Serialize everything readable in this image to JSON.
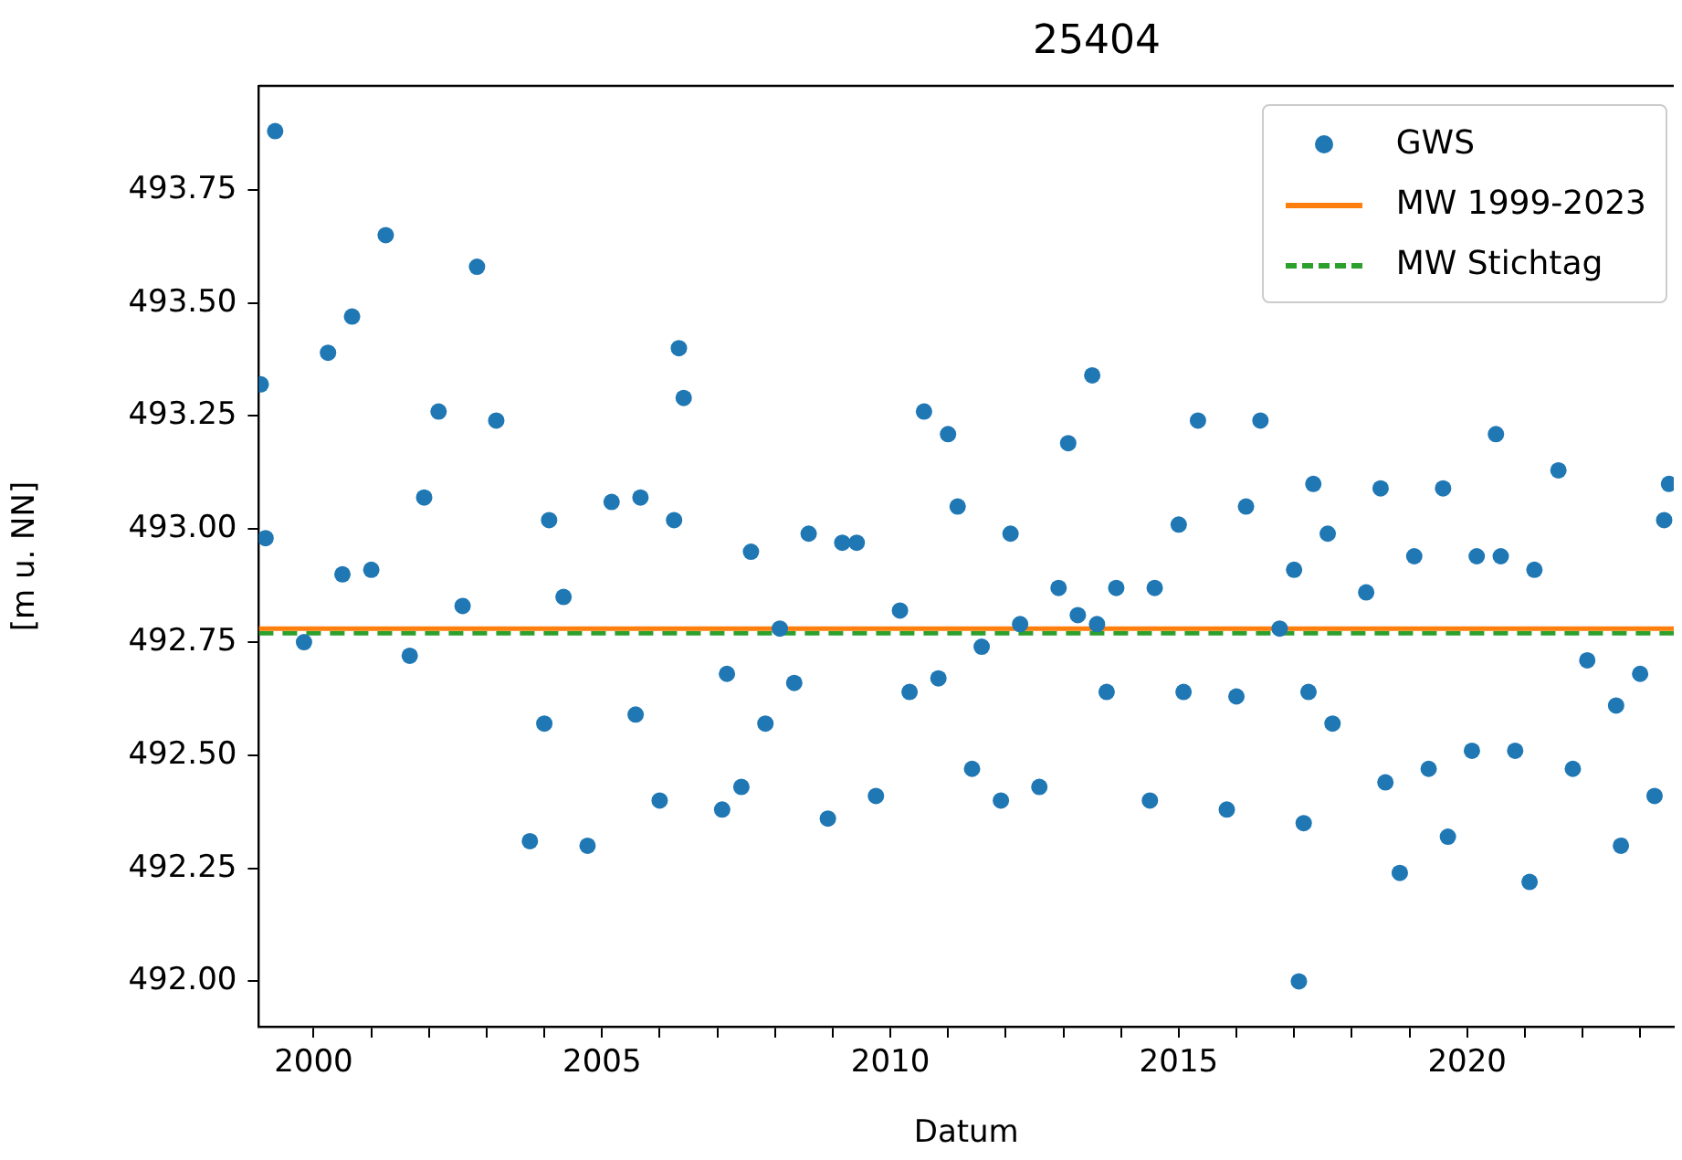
{
  "chart_data": {
    "type": "scatter",
    "title": "25404",
    "xlabel": "Datum",
    "ylabel": "[m u. NN]",
    "x": [
      "1999-02",
      "1999-03",
      "1999-05",
      "1999-11",
      "2000-04",
      "2000-07",
      "2000-09",
      "2001-01",
      "2001-04",
      "2001-09",
      "2001-12",
      "2002-03",
      "2002-08",
      "2002-11",
      "2003-03",
      "2003-10",
      "2004-01",
      "2004-02",
      "2004-05",
      "2004-10",
      "2005-03",
      "2005-08",
      "2005-09",
      "2006-01",
      "2006-04",
      "2006-05",
      "2006-06",
      "2007-02",
      "2007-03",
      "2007-06",
      "2007-08",
      "2007-11",
      "2008-02",
      "2008-05",
      "2008-08",
      "2008-12",
      "2009-03",
      "2009-06",
      "2009-10",
      "2010-03",
      "2010-05",
      "2010-08",
      "2010-11",
      "2011-01",
      "2011-03",
      "2011-06",
      "2011-08",
      "2011-12",
      "2012-02",
      "2012-04",
      "2012-08",
      "2012-12",
      "2013-02",
      "2013-04",
      "2013-07",
      "2013-08",
      "2013-10",
      "2013-12",
      "2014-07",
      "2014-08",
      "2015-01",
      "2015-02",
      "2015-05",
      "2015-11",
      "2016-01",
      "2016-03",
      "2016-06",
      "2016-10",
      "2017-01",
      "2017-02",
      "2017-03",
      "2017-04",
      "2017-05",
      "2017-08",
      "2017-09",
      "2018-04",
      "2018-07",
      "2018-08",
      "2018-11",
      "2019-02",
      "2019-05",
      "2019-08",
      "2019-09",
      "2020-02",
      "2020-03",
      "2020-07",
      "2020-08",
      "2020-11",
      "2021-02",
      "2021-03",
      "2021-08",
      "2021-11",
      "2022-02",
      "2022-08",
      "2022-09",
      "2023-01",
      "2023-04",
      "2023-06",
      "2023-07"
    ],
    "series": [
      {
        "name": "GWS",
        "color": "#1f77b4",
        "values": [
          493.32,
          492.98,
          493.88,
          492.75,
          493.39,
          492.9,
          493.47,
          492.91,
          493.65,
          492.72,
          493.07,
          493.26,
          492.83,
          493.58,
          493.24,
          492.31,
          492.57,
          493.02,
          492.85,
          492.3,
          493.06,
          492.59,
          493.07,
          492.4,
          493.02,
          493.4,
          493.29,
          492.38,
          492.68,
          492.43,
          492.95,
          492.57,
          492.78,
          492.66,
          492.99,
          492.36,
          492.97,
          492.97,
          492.41,
          492.82,
          492.64,
          493.26,
          492.67,
          493.21,
          493.05,
          492.47,
          492.74,
          492.4,
          492.99,
          492.79,
          492.43,
          492.87,
          493.19,
          492.81,
          493.34,
          492.79,
          492.64,
          492.87,
          492.4,
          492.87,
          493.01,
          492.64,
          493.24,
          492.38,
          492.63,
          493.05,
          493.24,
          492.78,
          492.91,
          492.0,
          492.35,
          492.64,
          493.1,
          492.99,
          492.57,
          492.86,
          493.09,
          492.44,
          492.24,
          492.94,
          492.47,
          493.09,
          492.32,
          492.51,
          492.94,
          493.21,
          492.94,
          492.51,
          492.22,
          492.91,
          493.13,
          492.47,
          492.71,
          492.61,
          492.3,
          492.68,
          492.41,
          493.02,
          493.1
        ]
      }
    ],
    "marker": "circle",
    "ref_lines": [
      {
        "axis": "y",
        "value": 492.78,
        "label": "MW 1999-2023",
        "color": "#ff7f0e"
      },
      {
        "axis": "y",
        "value": 492.77,
        "label": "MW Stichtag",
        "color": "#2ca02c",
        "line_style": "dashed"
      }
    ],
    "xlim": [
      "1999-01-19",
      "2023-08"
    ],
    "ylim": [
      491.9,
      493.98
    ],
    "xticks": [
      "2000",
      {
        "value": "2001",
        "label": null
      },
      {
        "value": "2002",
        "label": null
      },
      {
        "value": "2003",
        "label": null
      },
      {
        "value": "2004",
        "label": null
      },
      "2005",
      {
        "value": "2006",
        "label": null
      },
      {
        "value": "2007",
        "label": null
      },
      {
        "value": "2008",
        "label": null
      },
      {
        "value": "2009",
        "label": null
      },
      "2010",
      {
        "value": "2011",
        "label": null
      },
      {
        "value": "2012",
        "label": null
      },
      {
        "value": "2013",
        "label": null
      },
      {
        "value": "2014",
        "label": null
      },
      "2015",
      {
        "value": "2016",
        "label": null
      },
      {
        "value": "2017",
        "label": null
      },
      {
        "value": "2018",
        "label": null
      },
      {
        "value": "2019",
        "label": null
      },
      "2020",
      {
        "value": "2021",
        "label": null
      },
      {
        "value": "2022",
        "label": null
      },
      {
        "value": "2023",
        "label": null
      }
    ],
    "yticks": [
      {
        "value": 492,
        "label": "492.00"
      },
      {
        "value": 492.25,
        "label": "492.25"
      },
      {
        "value": 492.5,
        "label": "492.50"
      },
      {
        "value": 492.75,
        "label": "492.75"
      },
      {
        "value": 493,
        "label": "493.00"
      },
      {
        "value": 493.25,
        "label": "493.25"
      },
      {
        "value": 493.5,
        "label": "493.50"
      },
      {
        "value": 493.75,
        "label": "493.75"
      }
    ],
    "legend": "top right"
  }
}
